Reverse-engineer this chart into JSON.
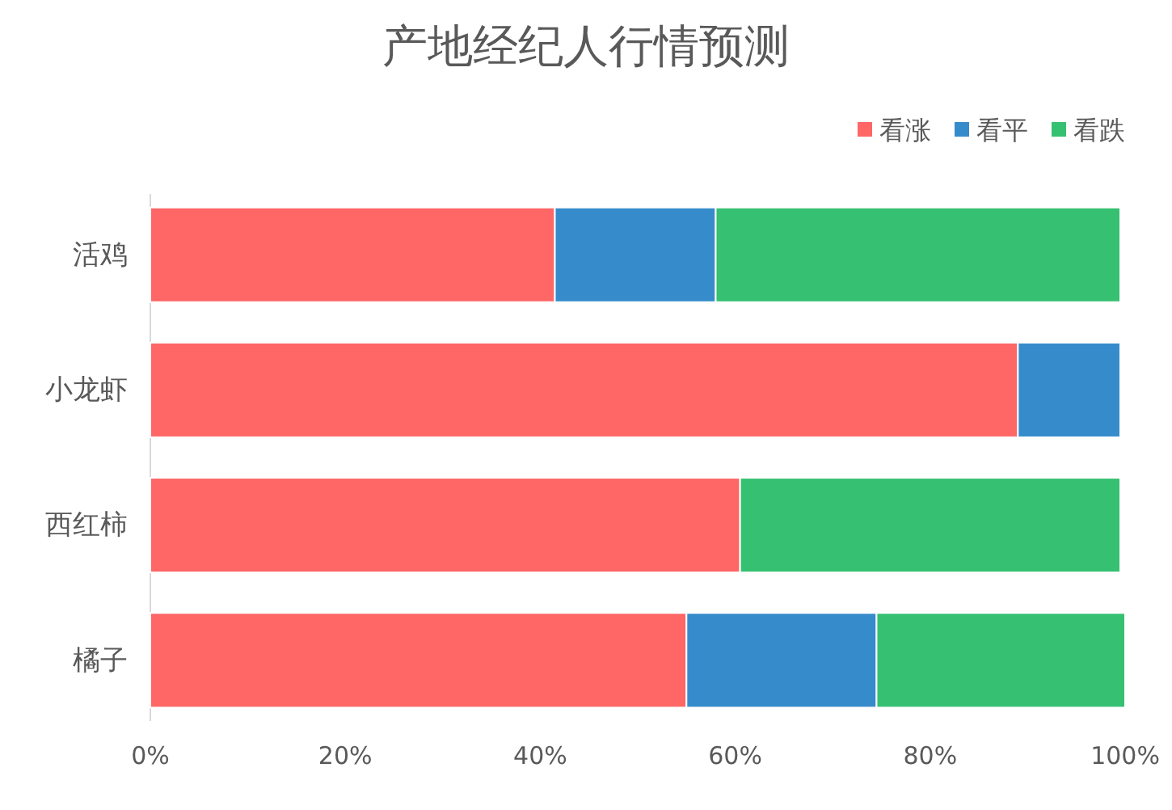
{
  "chart_data": {
    "type": "bar",
    "title": "产地经纪人行情预测",
    "orientation": "horizontal",
    "stacked": true,
    "categories": [
      "活鸡",
      "小龙虾",
      "西红柿",
      "橘子"
    ],
    "series": [
      {
        "name": "看涨",
        "color": "#ff6666",
        "values": [
          41.5,
          89,
          60.5,
          55
        ]
      },
      {
        "name": "看平",
        "color": "#368bcb",
        "values": [
          16.5,
          10.5,
          null,
          19.5
        ]
      },
      {
        "name": "看跌",
        "color": "#35c072",
        "values": [
          41.5,
          null,
          39,
          25.5
        ]
      }
    ],
    "xlim": [
      0,
      100
    ],
    "xticks": [
      {
        "value": 0,
        "label": "0%"
      },
      {
        "value": 20,
        "label": "20%"
      },
      {
        "value": 40,
        "label": "40%"
      },
      {
        "value": 60,
        "label": "60%"
      },
      {
        "value": 80,
        "label": "80%"
      },
      {
        "value": 100,
        "label": "100%"
      }
    ],
    "legend": "top right"
  }
}
